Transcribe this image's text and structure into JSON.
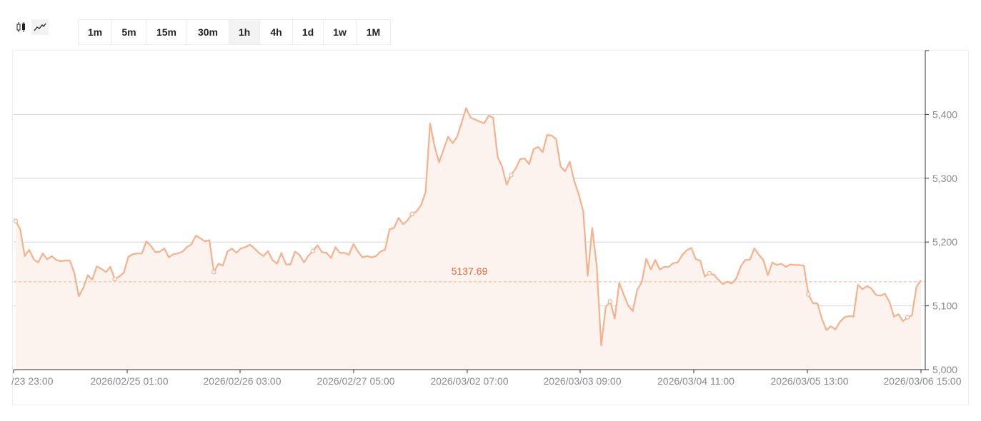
{
  "toolbar": {
    "chart_types": [
      {
        "icon": "candlestick-icon",
        "active": false
      },
      {
        "icon": "line-chart-icon",
        "active": true
      }
    ],
    "intervals": [
      "1m",
      "5m",
      "15m",
      "30m",
      "1h",
      "4h",
      "1d",
      "1w",
      "1M"
    ],
    "active_interval": "1h"
  },
  "colors": {
    "line": "#f5b08c",
    "fill": "#fdf3ee",
    "ref_line": "#f7b491",
    "ref_label": "#e8673a",
    "grid": "#d4d4d4",
    "axis": "#333333"
  },
  "chart_data": {
    "type": "area",
    "x_tick_labels": [
      "/23 23:00",
      "2026/02/25 01:00",
      "2026/02/26 03:00",
      "2026/02/27 05:00",
      "2026/03/02 07:00",
      "2026/03/03 09:00",
      "2026/03/04 11:00",
      "2026/03/05 13:00",
      "2026/03/06 15:00"
    ],
    "y_tick_labels": [
      "5,000",
      "5,100",
      "5,200",
      "5,300",
      "5,400"
    ],
    "ylim": [
      5000,
      5500
    ],
    "grid": "horizontal",
    "reference_line": {
      "value": 5137.69,
      "label": "5137.69"
    },
    "values": [
      5233,
      5220,
      5178,
      5188,
      5173,
      5168,
      5182,
      5173,
      5178,
      5172,
      5170,
      5171,
      5171,
      5152,
      5115,
      5128,
      5148,
      5141,
      5162,
      5158,
      5153,
      5161,
      5142,
      5146,
      5152,
      5177,
      5181,
      5182,
      5182,
      5201,
      5194,
      5184,
      5185,
      5190,
      5176,
      5181,
      5182,
      5185,
      5192,
      5196,
      5210,
      5206,
      5201,
      5203,
      5153,
      5166,
      5163,
      5185,
      5190,
      5183,
      5190,
      5192,
      5196,
      5190,
      5183,
      5178,
      5186,
      5172,
      5166,
      5183,
      5165,
      5165,
      5185,
      5180,
      5168,
      5179,
      5186,
      5195,
      5184,
      5183,
      5175,
      5192,
      5183,
      5183,
      5180,
      5197,
      5185,
      5176,
      5178,
      5176,
      5178,
      5185,
      5188,
      5220,
      5222,
      5238,
      5228,
      5234,
      5244,
      5248,
      5258,
      5278,
      5386,
      5350,
      5325,
      5345,
      5365,
      5355,
      5365,
      5387,
      5410,
      5395,
      5392,
      5389,
      5386,
      5398,
      5395,
      5334,
      5318,
      5290,
      5305,
      5315,
      5330,
      5331,
      5322,
      5346,
      5349,
      5341,
      5368,
      5367,
      5361,
      5318,
      5311,
      5326,
      5296,
      5275,
      5249,
      5147,
      5222,
      5163,
      5038,
      5098,
      5107,
      5080,
      5136,
      5118,
      5100,
      5092,
      5125,
      5137,
      5174,
      5157,
      5172,
      5157,
      5161,
      5161,
      5167,
      5168,
      5180,
      5187,
      5191,
      5173,
      5171,
      5146,
      5151,
      5149,
      5141,
      5134,
      5138,
      5135,
      5143,
      5162,
      5172,
      5172,
      5190,
      5180,
      5172,
      5148,
      5168,
      5164,
      5166,
      5161,
      5165,
      5164,
      5164,
      5163,
      5118,
      5104,
      5104,
      5080,
      5062,
      5068,
      5063,
      5075,
      5082,
      5084,
      5083,
      5133,
      5126,
      5131,
      5127,
      5117,
      5116,
      5119,
      5106,
      5083,
      5087,
      5076,
      5082,
      5085,
      5130,
      5140
    ],
    "hollow_markers_at_index": [
      0,
      22,
      44,
      66,
      88,
      110,
      132,
      154,
      176,
      198,
      210
    ]
  }
}
